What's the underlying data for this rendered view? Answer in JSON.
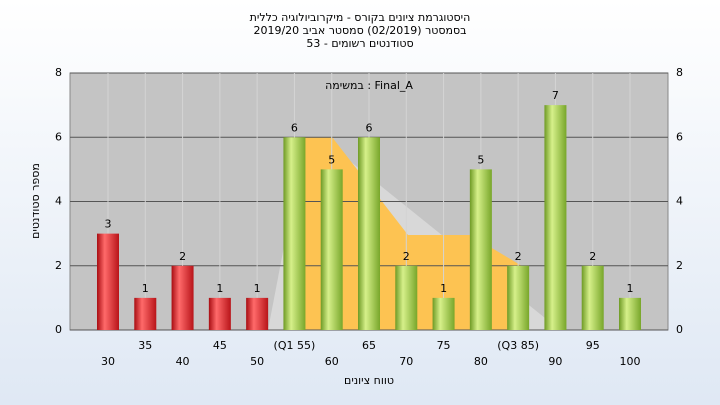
{
  "chart_data": {
    "type": "bar",
    "title": [
      "היסטוגרמת ציונים בקורס - מיקרוביולוגיה כללית",
      "בסמסטר (02/2019) סמסטר אביב 2019/20",
      "סטודנטים רשומים - 53"
    ],
    "annotation": "במשימה : Final_A",
    "x_label": "טווח ציונים",
    "y_label": "מספר סטודנטים",
    "categories": [
      "30",
      "35",
      "40",
      "45",
      "50",
      "(Q1 55)",
      "60",
      "65",
      "70",
      "75",
      "80",
      "(Q3 85)",
      "90",
      "95",
      "100"
    ],
    "values": [
      3,
      1,
      2,
      1,
      1,
      6,
      5,
      6,
      2,
      1,
      5,
      2,
      7,
      2,
      1
    ],
    "colors": [
      "red",
      "red",
      "red",
      "red",
      "red",
      "green",
      "green",
      "green",
      "green",
      "green",
      "green",
      "green",
      "green",
      "green",
      "green"
    ],
    "ylim": [
      0,
      8
    ],
    "yticks": [
      0,
      2,
      4,
      6,
      8
    ],
    "grid": true
  }
}
